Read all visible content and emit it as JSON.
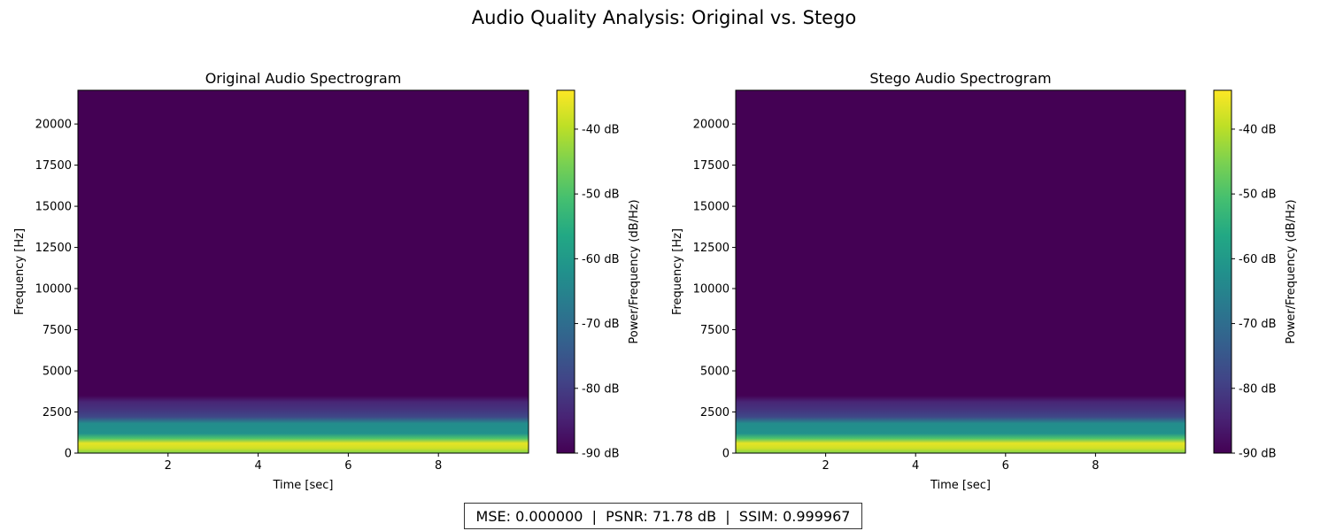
{
  "suptitle": "Audio Quality Analysis: Original vs. Stego",
  "metrics_text": "MSE: 0.000000  |  PSNR: 71.78 dB  |  SSIM: 0.999967",
  "colormap": [
    "#440154",
    "#482475",
    "#414487",
    "#355f8d",
    "#2a788e",
    "#21918c",
    "#22a884",
    "#44bf70",
    "#7ad151",
    "#bddf26",
    "#fde725"
  ],
  "chart_data": [
    {
      "type": "heatmap",
      "title": "Original Audio Spectrogram",
      "xlabel": "Time [sec]",
      "ylabel": "Frequency [Hz]",
      "xlim": [
        0,
        10
      ],
      "ylim": [
        0,
        22050
      ],
      "x_ticks": [
        2,
        4,
        6,
        8
      ],
      "y_ticks": [
        0,
        2500,
        5000,
        7500,
        10000,
        12500,
        15000,
        17500,
        20000
      ],
      "colorbar": {
        "label": "Power/Frequency (dB/Hz)",
        "range": [
          -90,
          -34
        ],
        "ticks": [
          "-40 dB",
          "-50 dB",
          "-60 dB",
          "-70 dB",
          "-80 dB",
          "-90 dB"
        ],
        "tick_values": [
          -40,
          -50,
          -60,
          -70,
          -80,
          -90
        ]
      },
      "frequency_profile": [
        {
          "freq": 0,
          "db": -45
        },
        {
          "freq": 300,
          "db": -38
        },
        {
          "freq": 600,
          "db": -36
        },
        {
          "freq": 900,
          "db": -50
        },
        {
          "freq": 1200,
          "db": -62
        },
        {
          "freq": 1800,
          "db": -63
        },
        {
          "freq": 2200,
          "db": -78
        },
        {
          "freq": 2700,
          "db": -82
        },
        {
          "freq": 3100,
          "db": -84
        },
        {
          "freq": 3500,
          "db": -90
        },
        {
          "freq": 22050,
          "db": -90
        }
      ]
    },
    {
      "type": "heatmap",
      "title": "Stego Audio Spectrogram",
      "xlabel": "Time [sec]",
      "ylabel": "Frequency [Hz]",
      "xlim": [
        0,
        10
      ],
      "ylim": [
        0,
        22050
      ],
      "x_ticks": [
        2,
        4,
        6,
        8
      ],
      "y_ticks": [
        0,
        2500,
        5000,
        7500,
        10000,
        12500,
        15000,
        17500,
        20000
      ],
      "colorbar": {
        "label": "Power/Frequency (dB/Hz)",
        "range": [
          -90,
          -34
        ],
        "ticks": [
          "-40 dB",
          "-50 dB",
          "-60 dB",
          "-70 dB",
          "-80 dB",
          "-90 dB"
        ],
        "tick_values": [
          -40,
          -50,
          -60,
          -70,
          -80,
          -90
        ]
      },
      "frequency_profile": [
        {
          "freq": 0,
          "db": -45
        },
        {
          "freq": 300,
          "db": -38
        },
        {
          "freq": 600,
          "db": -36
        },
        {
          "freq": 900,
          "db": -50
        },
        {
          "freq": 1200,
          "db": -62
        },
        {
          "freq": 1800,
          "db": -63
        },
        {
          "freq": 2200,
          "db": -78
        },
        {
          "freq": 2700,
          "db": -82
        },
        {
          "freq": 3100,
          "db": -84
        },
        {
          "freq": 3500,
          "db": -90
        },
        {
          "freq": 22050,
          "db": -90
        }
      ]
    }
  ]
}
